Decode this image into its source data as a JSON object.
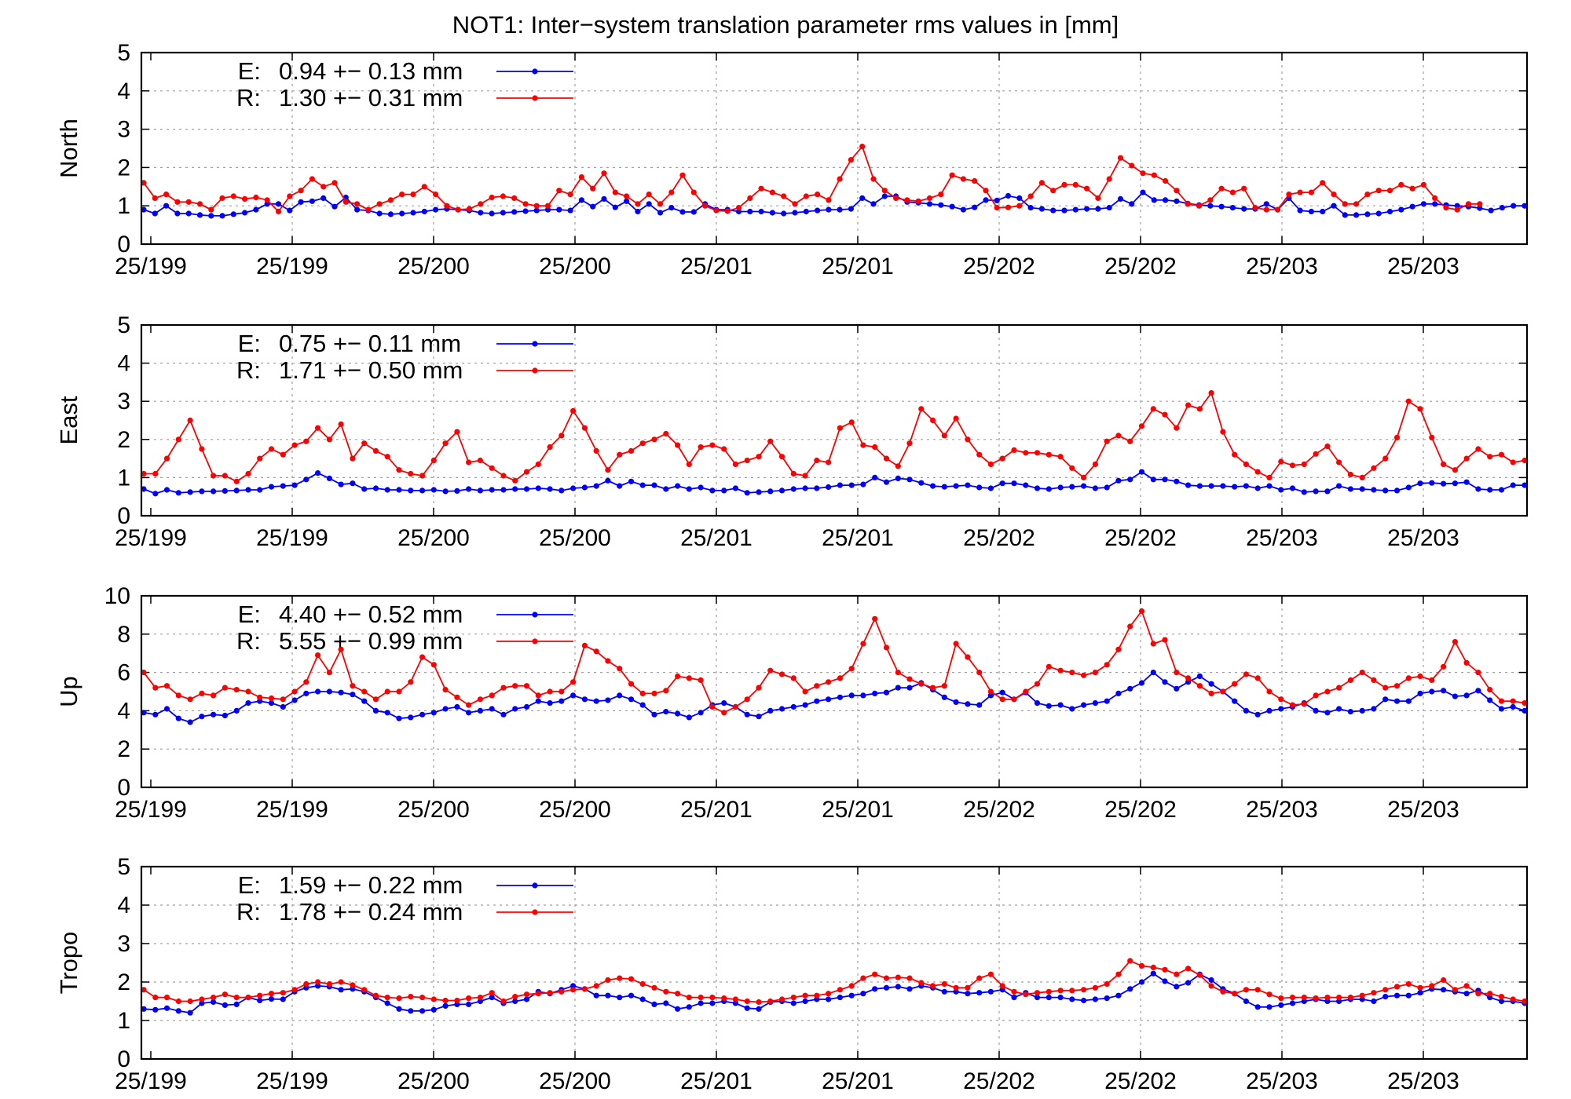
{
  "title": "NOT1: Inter−system translation parameter rms values in [mm]",
  "colors": {
    "E": "#0000ff",
    "R": "#ff0000",
    "frame": "#000000",
    "grid": "#a0a0a0"
  },
  "x_tick_labels": [
    "25/199",
    "25/199",
    "25/200",
    "25/200",
    "25/201",
    "25/201",
    "25/202",
    "25/202",
    "25/203",
    "25/203"
  ],
  "chart_data": [
    {
      "type": "line",
      "ylabel": "North",
      "ylim": [
        0,
        5
      ],
      "yticks": [
        0,
        1,
        2,
        3,
        4,
        5
      ],
      "grid": true,
      "legend_position": "top-left",
      "legend": [
        {
          "key": "E:",
          "text": "0.94 +− 0.13 mm"
        },
        {
          "key": "R:",
          "text": "1.30 +− 0.31 mm"
        }
      ],
      "series": [
        {
          "name": "E",
          "values": [
            0.9,
            0.8,
            1.0,
            0.8,
            0.8,
            0.76,
            0.74,
            0.74,
            0.78,
            0.82,
            0.9,
            1.05,
            1.05,
            0.88,
            1.1,
            1.12,
            1.2,
            0.98,
            1.22,
            0.9,
            0.88,
            0.8,
            0.78,
            0.8,
            0.82,
            0.85,
            0.9,
            0.92,
            0.9,
            0.88,
            0.82,
            0.8,
            0.82,
            0.84,
            0.86,
            0.88,
            0.9,
            0.9,
            0.88,
            1.15,
            0.98,
            1.18,
            0.96,
            1.12,
            0.85,
            1.05,
            0.82,
            0.95,
            0.84,
            0.84,
            1.05,
            0.9,
            0.9,
            0.85,
            0.85,
            0.85,
            0.82,
            0.8,
            0.82,
            0.85,
            0.88,
            0.9,
            0.9,
            0.92,
            1.2,
            1.05,
            1.25,
            1.25,
            1.1,
            1.08,
            1.05,
            1.02,
            0.98,
            0.9,
            0.96,
            1.15,
            1.14,
            1.26,
            1.2,
            0.95,
            0.92,
            0.88,
            0.88,
            0.9,
            0.92,
            0.92,
            0.95,
            1.18,
            1.05,
            1.35,
            1.15,
            1.15,
            1.12,
            1.06,
            1.02,
            1.0,
            0.98,
            0.95,
            0.92,
            0.92,
            1.05,
            0.9,
            1.2,
            0.88,
            0.85,
            0.85,
            1.0,
            0.76,
            0.76,
            0.78,
            0.8,
            0.85,
            0.9,
            0.98,
            1.05,
            1.05,
            1.02,
            1.0,
            0.98,
            0.94,
            0.88,
            0.95,
            1.0,
            1.0
          ]
        },
        {
          "name": "R",
          "values": [
            1.6,
            1.2,
            1.3,
            1.1,
            1.1,
            1.05,
            0.9,
            1.2,
            1.25,
            1.18,
            1.22,
            1.15,
            0.85,
            1.25,
            1.4,
            1.7,
            1.5,
            1.6,
            1.1,
            1.05,
            0.9,
            1.05,
            1.15,
            1.3,
            1.3,
            1.5,
            1.3,
            1.0,
            0.9,
            0.92,
            1.05,
            1.22,
            1.25,
            1.2,
            1.05,
            1.0,
            1.0,
            1.4,
            1.3,
            1.75,
            1.45,
            1.85,
            1.35,
            1.25,
            1.05,
            1.3,
            1.05,
            1.35,
            1.8,
            1.35,
            1.0,
            0.88,
            0.86,
            0.95,
            1.2,
            1.45,
            1.35,
            1.25,
            1.05,
            1.25,
            1.3,
            1.15,
            1.7,
            2.2,
            2.55,
            1.7,
            1.4,
            1.2,
            1.15,
            1.12,
            1.2,
            1.3,
            1.8,
            1.7,
            1.65,
            1.4,
            0.95,
            0.96,
            1.0,
            1.25,
            1.6,
            1.4,
            1.55,
            1.55,
            1.45,
            1.2,
            1.7,
            2.25,
            2.05,
            1.85,
            1.8,
            1.65,
            1.4,
            1.05,
            1.0,
            1.15,
            1.45,
            1.35,
            1.45,
            0.95,
            0.9,
            0.9,
            1.3,
            1.35,
            1.35,
            1.6,
            1.3,
            1.05,
            1.05,
            1.3,
            1.4,
            1.4,
            1.55,
            1.45,
            1.55,
            1.2,
            0.95,
            0.9,
            1.05,
            1.05
          ]
        }
      ]
    },
    {
      "type": "line",
      "ylabel": "East",
      "ylim": [
        0,
        5
      ],
      "yticks": [
        0,
        1,
        2,
        3,
        4,
        5
      ],
      "grid": true,
      "legend_position": "top-left",
      "legend": [
        {
          "key": "E:",
          "text": "0.75 +− 0.11 mm"
        },
        {
          "key": "R:",
          "text": "1.71 +− 0.50 mm"
        }
      ],
      "series": [
        {
          "name": "E",
          "values": [
            0.7,
            0.58,
            0.68,
            0.6,
            0.62,
            0.64,
            0.64,
            0.65,
            0.66,
            0.68,
            0.68,
            0.76,
            0.78,
            0.8,
            0.95,
            1.12,
            0.98,
            0.82,
            0.85,
            0.7,
            0.72,
            0.68,
            0.68,
            0.66,
            0.66,
            0.68,
            0.64,
            0.65,
            0.7,
            0.66,
            0.68,
            0.68,
            0.7,
            0.7,
            0.72,
            0.7,
            0.66,
            0.72,
            0.74,
            0.78,
            0.92,
            0.78,
            0.9,
            0.8,
            0.8,
            0.7,
            0.78,
            0.7,
            0.74,
            0.66,
            0.66,
            0.72,
            0.6,
            0.62,
            0.64,
            0.66,
            0.7,
            0.72,
            0.72,
            0.75,
            0.8,
            0.8,
            0.82,
            1.0,
            0.88,
            0.98,
            0.95,
            0.86,
            0.78,
            0.76,
            0.78,
            0.8,
            0.74,
            0.72,
            0.85,
            0.85,
            0.8,
            0.72,
            0.7,
            0.74,
            0.76,
            0.78,
            0.72,
            0.74,
            0.92,
            0.95,
            1.15,
            0.95,
            0.95,
            0.9,
            0.8,
            0.78,
            0.78,
            0.78,
            0.76,
            0.78,
            0.72,
            0.78,
            0.68,
            0.72,
            0.62,
            0.64,
            0.64,
            0.78,
            0.7,
            0.7,
            0.68,
            0.66,
            0.66,
            0.74,
            0.85,
            0.86,
            0.84,
            0.85,
            0.88,
            0.7,
            0.68,
            0.68,
            0.8,
            0.8
          ]
        },
        {
          "name": "R",
          "values": [
            1.1,
            1.1,
            1.5,
            2.0,
            2.5,
            1.75,
            1.05,
            1.05,
            0.9,
            1.1,
            1.5,
            1.75,
            1.6,
            1.85,
            1.95,
            2.3,
            2.0,
            2.4,
            1.5,
            1.9,
            1.7,
            1.55,
            1.2,
            1.1,
            1.05,
            1.45,
            1.9,
            2.2,
            1.4,
            1.45,
            1.25,
            1.05,
            0.92,
            1.15,
            1.35,
            1.8,
            2.1,
            2.75,
            2.3,
            1.7,
            1.2,
            1.6,
            1.7,
            1.9,
            2.0,
            2.15,
            1.85,
            1.35,
            1.8,
            1.85,
            1.75,
            1.35,
            1.45,
            1.55,
            1.95,
            1.55,
            1.1,
            1.05,
            1.45,
            1.4,
            2.3,
            2.45,
            1.85,
            1.8,
            1.5,
            1.3,
            1.9,
            2.8,
            2.5,
            2.1,
            2.55,
            2.0,
            1.6,
            1.35,
            1.5,
            1.72,
            1.65,
            1.65,
            1.6,
            1.55,
            1.25,
            1.0,
            1.35,
            1.95,
            2.1,
            1.95,
            2.35,
            2.8,
            2.65,
            2.3,
            2.9,
            2.8,
            3.22,
            2.2,
            1.6,
            1.35,
            1.15,
            1.0,
            1.42,
            1.32,
            1.35,
            1.62,
            1.82,
            1.4,
            1.08,
            1.0,
            1.25,
            1.5,
            2.05,
            3.0,
            2.8,
            2.05,
            1.35,
            1.2,
            1.5,
            1.75,
            1.55,
            1.6,
            1.4,
            1.45
          ]
        }
      ]
    },
    {
      "type": "line",
      "ylabel": "Up",
      "ylim": [
        0,
        10
      ],
      "yticks": [
        0,
        2,
        4,
        6,
        8,
        10
      ],
      "grid": true,
      "legend_position": "top-left",
      "legend": [
        {
          "key": "E:",
          "text": "4.40 +− 0.52 mm"
        },
        {
          "key": "R:",
          "text": "5.55 +− 0.99 mm"
        }
      ],
      "series": [
        {
          "name": "E",
          "values": [
            3.9,
            3.8,
            4.1,
            3.6,
            3.4,
            3.7,
            3.8,
            3.75,
            4.0,
            4.4,
            4.5,
            4.4,
            4.2,
            4.55,
            4.9,
            5.0,
            5.0,
            4.95,
            4.85,
            4.5,
            4.0,
            3.9,
            3.6,
            3.65,
            3.8,
            3.9,
            4.1,
            4.2,
            3.9,
            4.0,
            4.1,
            3.8,
            4.1,
            4.2,
            4.5,
            4.4,
            4.5,
            4.8,
            4.6,
            4.5,
            4.55,
            4.8,
            4.6,
            4.3,
            3.8,
            3.95,
            3.85,
            3.65,
            3.9,
            4.3,
            4.4,
            4.2,
            3.8,
            3.7,
            4.0,
            4.1,
            4.2,
            4.3,
            4.5,
            4.6,
            4.7,
            4.8,
            4.8,
            4.9,
            4.95,
            5.2,
            5.2,
            5.45,
            5.1,
            4.7,
            4.45,
            4.35,
            4.3,
            4.8,
            4.95,
            4.6,
            4.95,
            4.4,
            4.25,
            4.3,
            4.1,
            4.3,
            4.4,
            4.5,
            4.9,
            5.15,
            5.45,
            6.0,
            5.5,
            5.15,
            5.5,
            5.8,
            5.4,
            5.0,
            4.5,
            4.0,
            3.8,
            4.0,
            4.1,
            4.2,
            4.4,
            4.0,
            3.9,
            4.1,
            3.95,
            4.0,
            4.1,
            4.6,
            4.5,
            4.5,
            4.9,
            5.0,
            5.05,
            4.75,
            4.8,
            5.05,
            4.55,
            4.1,
            4.2,
            4.0
          ]
        },
        {
          "name": "R",
          "values": [
            6.0,
            5.2,
            5.3,
            4.8,
            4.6,
            4.9,
            4.8,
            5.2,
            5.1,
            5.0,
            4.7,
            4.65,
            4.6,
            5.0,
            5.5,
            6.9,
            6.0,
            7.2,
            5.3,
            5.0,
            4.6,
            5.0,
            5.0,
            5.5,
            6.8,
            6.4,
            5.1,
            4.7,
            4.3,
            4.6,
            4.8,
            5.2,
            5.3,
            5.3,
            4.8,
            5.0,
            5.0,
            5.5,
            7.4,
            7.1,
            6.6,
            6.2,
            5.4,
            4.9,
            4.9,
            5.05,
            5.8,
            5.7,
            5.6,
            4.2,
            3.9,
            4.2,
            4.6,
            5.2,
            6.1,
            5.9,
            5.7,
            5.0,
            5.3,
            5.5,
            5.7,
            6.2,
            7.5,
            8.8,
            7.3,
            6.0,
            5.65,
            5.4,
            5.2,
            5.3,
            7.5,
            6.8,
            6.0,
            5.0,
            4.6,
            4.6,
            5.0,
            5.4,
            6.3,
            6.1,
            6.0,
            5.85,
            6.0,
            6.4,
            7.2,
            8.4,
            9.2,
            7.5,
            7.7,
            6.0,
            5.7,
            5.3,
            4.9,
            5.0,
            5.4,
            5.9,
            5.7,
            5.0,
            4.6,
            4.3,
            4.35,
            4.8,
            5.0,
            5.2,
            5.6,
            6.0,
            5.6,
            5.2,
            5.3,
            5.7,
            5.8,
            5.6,
            6.3,
            7.6,
            6.5,
            6.0,
            5.1,
            4.5,
            4.5,
            4.4
          ]
        }
      ]
    },
    {
      "type": "line",
      "ylabel": "Tropo",
      "ylim": [
        0,
        5
      ],
      "yticks": [
        0,
        1,
        2,
        3,
        4,
        5
      ],
      "grid": true,
      "legend_position": "top-left",
      "legend": [
        {
          "key": "E:",
          "text": "1.59 +− 0.22 mm"
        },
        {
          "key": "R:",
          "text": "1.78 +− 0.24 mm"
        }
      ],
      "series": [
        {
          "name": "E",
          "values": [
            1.3,
            1.28,
            1.32,
            1.25,
            1.2,
            1.45,
            1.48,
            1.4,
            1.42,
            1.6,
            1.52,
            1.56,
            1.55,
            1.75,
            1.85,
            1.9,
            1.88,
            1.8,
            1.82,
            1.75,
            1.6,
            1.45,
            1.3,
            1.25,
            1.25,
            1.28,
            1.38,
            1.42,
            1.42,
            1.5,
            1.6,
            1.45,
            1.5,
            1.55,
            1.75,
            1.7,
            1.8,
            1.9,
            1.82,
            1.65,
            1.65,
            1.6,
            1.65,
            1.55,
            1.42,
            1.45,
            1.3,
            1.35,
            1.45,
            1.45,
            1.5,
            1.45,
            1.32,
            1.3,
            1.48,
            1.5,
            1.45,
            1.5,
            1.55,
            1.55,
            1.6,
            1.65,
            1.7,
            1.82,
            1.85,
            1.88,
            1.82,
            1.9,
            1.85,
            1.75,
            1.75,
            1.7,
            1.72,
            1.75,
            1.8,
            1.6,
            1.72,
            1.6,
            1.6,
            1.6,
            1.55,
            1.52,
            1.55,
            1.58,
            1.65,
            1.82,
            2.0,
            2.22,
            2.02,
            1.88,
            1.98,
            2.2,
            2.05,
            1.82,
            1.7,
            1.5,
            1.35,
            1.35,
            1.4,
            1.45,
            1.5,
            1.55,
            1.5,
            1.5,
            1.55,
            1.55,
            1.5,
            1.62,
            1.65,
            1.65,
            1.72,
            1.82,
            1.8,
            1.75,
            1.7,
            1.78,
            1.6,
            1.5,
            1.5,
            1.45
          ]
        },
        {
          "name": "R",
          "values": [
            1.8,
            1.6,
            1.6,
            1.5,
            1.5,
            1.55,
            1.6,
            1.68,
            1.6,
            1.6,
            1.65,
            1.7,
            1.72,
            1.8,
            1.95,
            2.0,
            1.95,
            2.0,
            1.92,
            1.8,
            1.65,
            1.6,
            1.58,
            1.62,
            1.6,
            1.55,
            1.52,
            1.52,
            1.58,
            1.6,
            1.72,
            1.5,
            1.62,
            1.68,
            1.7,
            1.72,
            1.75,
            1.8,
            1.82,
            1.9,
            2.05,
            2.1,
            2.08,
            1.95,
            1.85,
            1.75,
            1.7,
            1.6,
            1.6,
            1.6,
            1.58,
            1.55,
            1.5,
            1.48,
            1.5,
            1.55,
            1.6,
            1.65,
            1.65,
            1.7,
            1.8,
            1.9,
            2.1,
            2.2,
            2.1,
            2.12,
            2.1,
            1.98,
            1.9,
            1.95,
            1.85,
            1.85,
            2.1,
            2.2,
            1.9,
            1.75,
            1.68,
            1.72,
            1.75,
            1.78,
            1.78,
            1.8,
            1.85,
            1.95,
            2.2,
            2.55,
            2.42,
            2.38,
            2.32,
            2.2,
            2.35,
            2.18,
            1.9,
            1.75,
            1.7,
            1.8,
            1.8,
            1.68,
            1.58,
            1.6,
            1.6,
            1.58,
            1.6,
            1.6,
            1.6,
            1.65,
            1.72,
            1.8,
            1.88,
            1.95,
            1.85,
            1.9,
            2.05,
            1.8,
            1.9,
            1.7,
            1.7,
            1.62,
            1.55,
            1.5
          ]
        }
      ]
    }
  ]
}
